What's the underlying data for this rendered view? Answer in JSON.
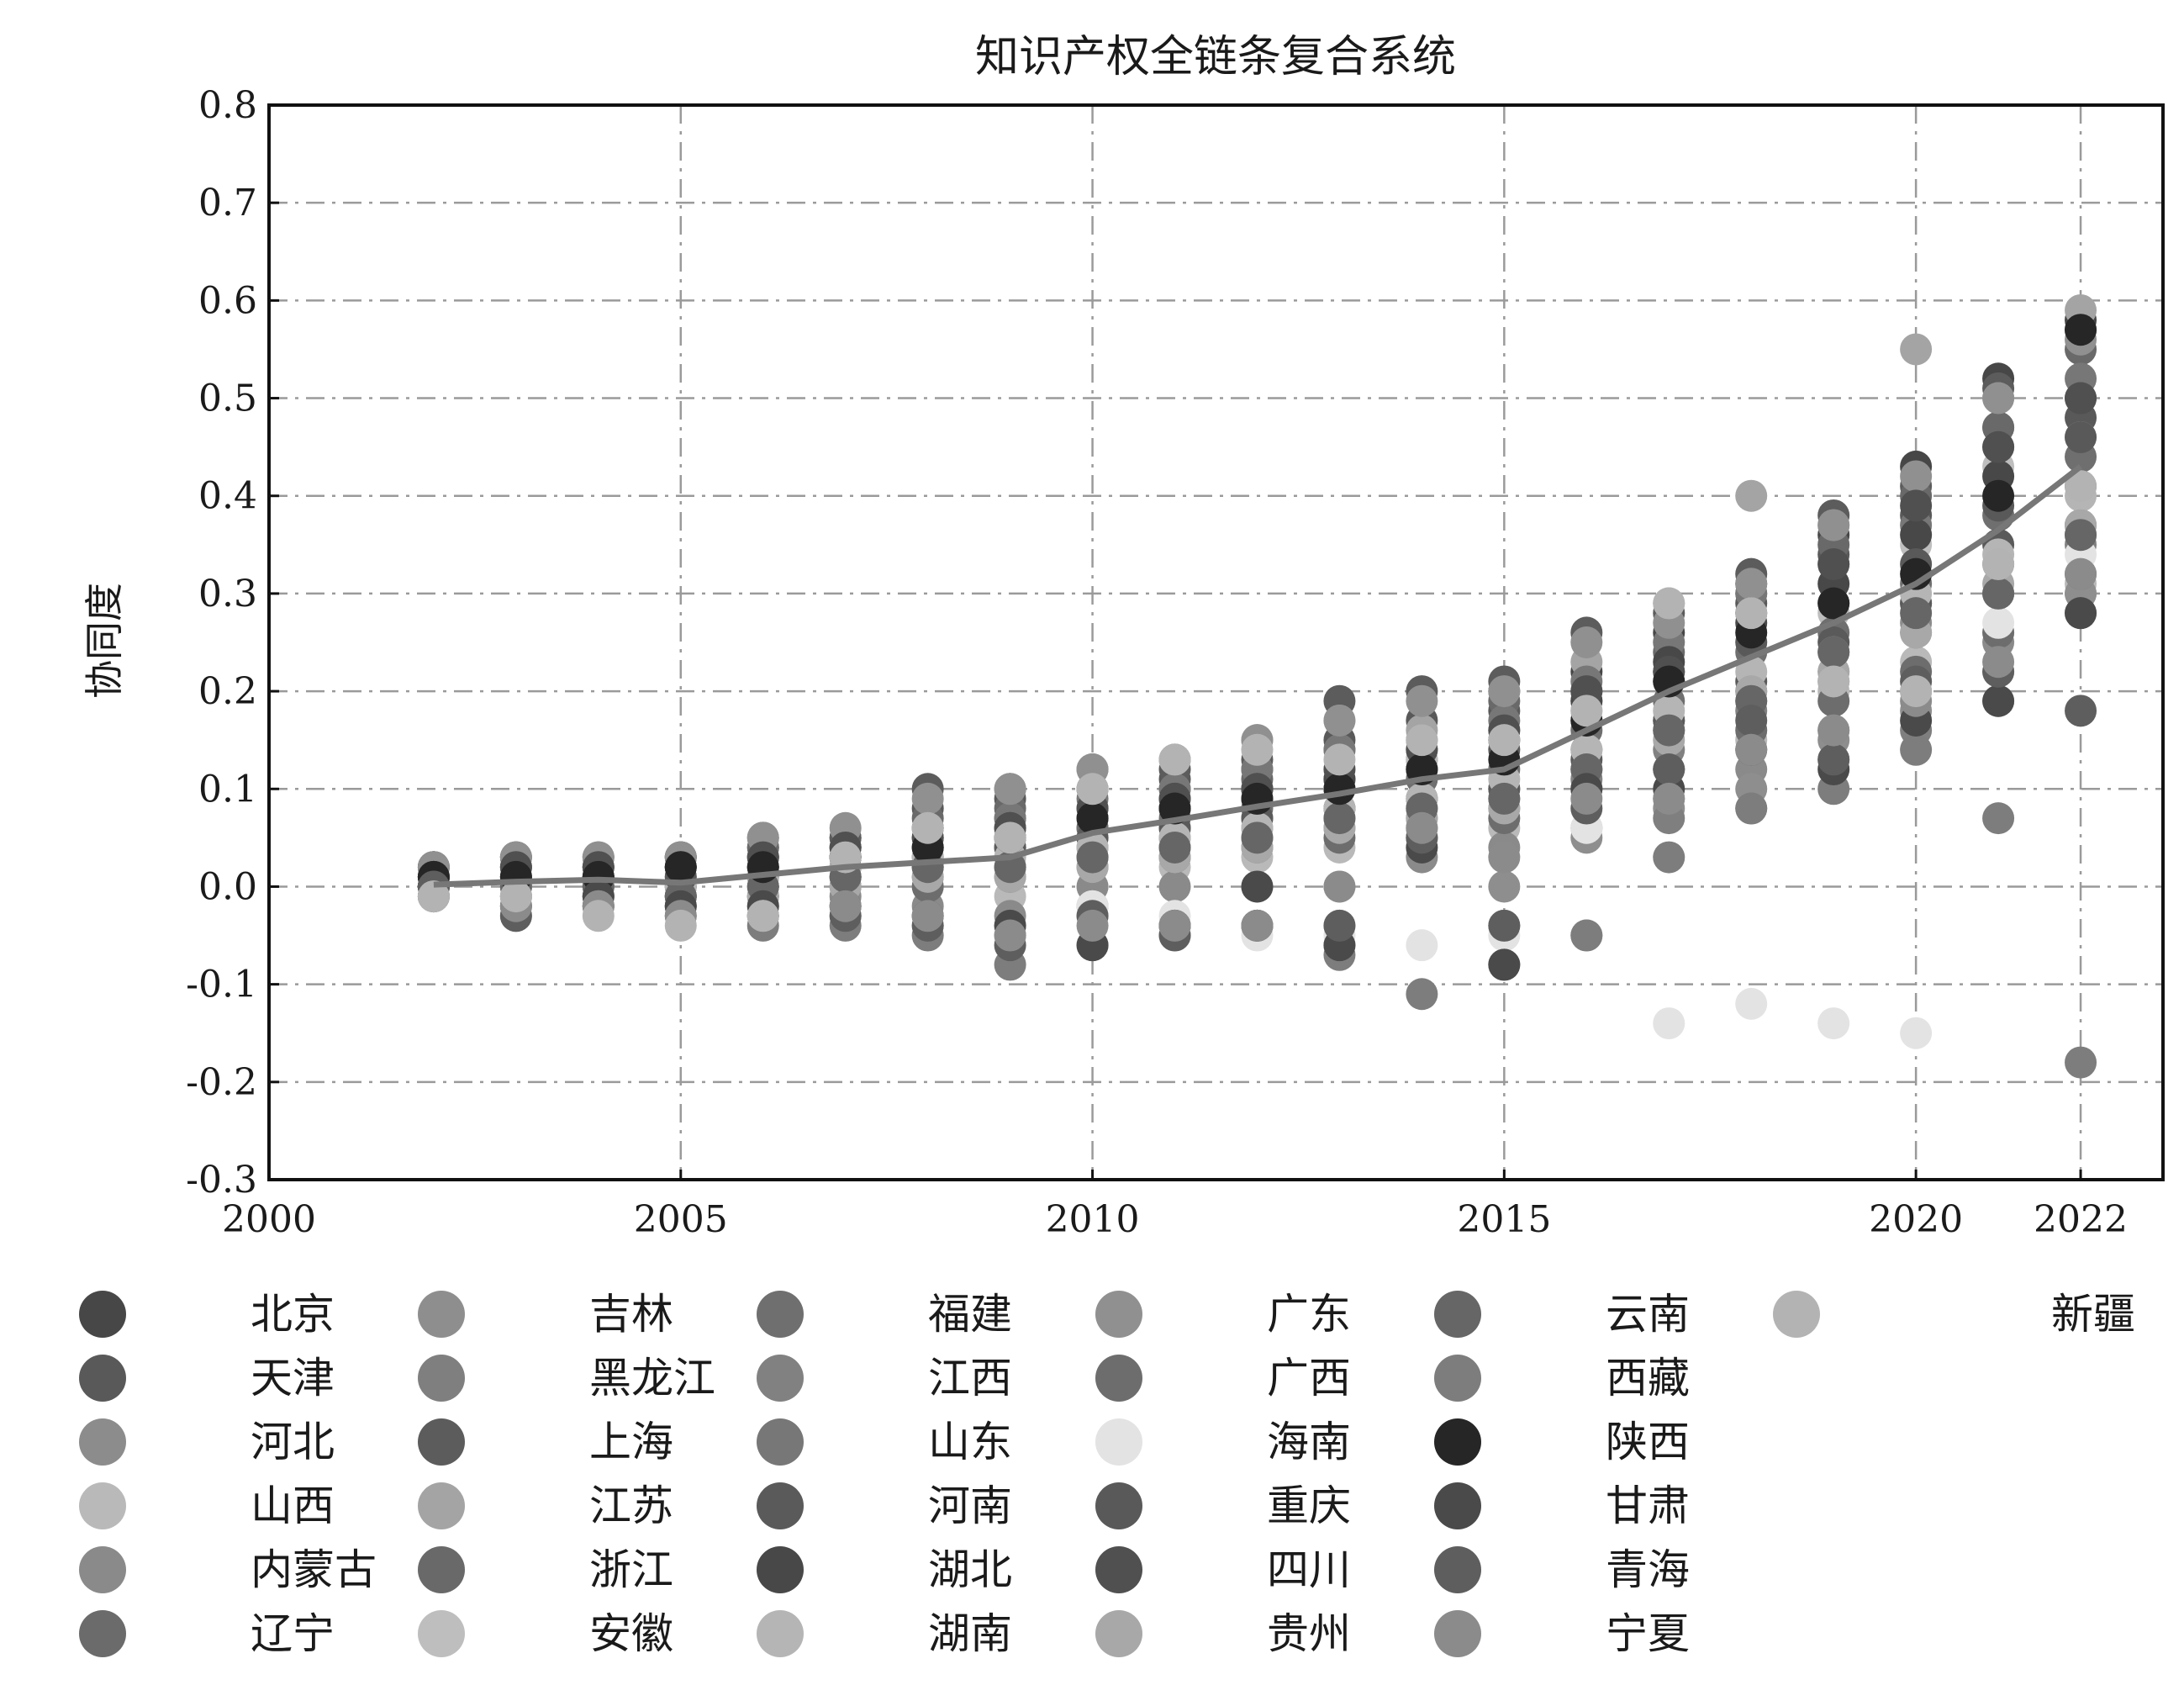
{
  "chart_data": {
    "type": "scatter",
    "title": "知识产权全链条复合系统",
    "ylabel": "协同度",
    "xlabel": "",
    "xlim": [
      2000,
      2023
    ],
    "ylim": [
      -0.3,
      0.8
    ],
    "x_ticks": [
      "2000",
      "2005",
      "2010",
      "2015",
      "2020",
      "2022"
    ],
    "x_tick_values": [
      2000,
      2005,
      2010,
      2015,
      2020,
      2022
    ],
    "y_ticks": [
      "-0.3",
      "-0.2",
      "-0.1",
      "0.0",
      "0.1",
      "0.2",
      "0.3",
      "0.4",
      "0.5",
      "0.6",
      "0.7",
      "0.8"
    ],
    "y_tick_values": [
      -0.3,
      -0.2,
      -0.1,
      0.0,
      0.1,
      0.2,
      0.3,
      0.4,
      0.5,
      0.6,
      0.7,
      0.8
    ],
    "grid": true,
    "legend_position": "bottom",
    "years": [
      2002,
      2003,
      2004,
      2005,
      2006,
      2007,
      2008,
      2009,
      2010,
      2011,
      2012,
      2013,
      2014,
      2015,
      2016,
      2017,
      2018,
      2019,
      2020,
      2021,
      2022
    ],
    "mean_line": {
      "x": [
        2002,
        2003,
        2004,
        2005,
        2006,
        2007,
        2008,
        2009,
        2010,
        2011,
        2012,
        2013,
        2014,
        2015,
        2016,
        2017,
        2018,
        2019,
        2020,
        2021,
        2022
      ],
      "y": [
        0.002,
        0.005,
        0.007,
        0.004,
        0.012,
        0.02,
        0.025,
        0.03,
        0.055,
        0.068,
        0.082,
        0.095,
        0.11,
        0.12,
        0.16,
        0.2,
        0.235,
        0.27,
        0.31,
        0.365,
        0.43
      ],
      "color": "#777777"
    },
    "series": [
      {
        "name": "北京",
        "color": "#474747",
        "values": [
          0.01,
          0.02,
          0.01,
          0.02,
          0.03,
          0.03,
          0.06,
          0.07,
          0.06,
          0.08,
          0.1,
          0.11,
          0.13,
          0.2,
          0.22,
          0.26,
          0.31,
          0.36,
          0.43,
          0.52,
          0.58
        ]
      },
      {
        "name": "天津",
        "color": "#595959",
        "values": [
          0.02,
          0.03,
          0.03,
          0.03,
          0.04,
          0.05,
          0.08,
          0.09,
          0.1,
          0.11,
          0.12,
          0.15,
          0.17,
          0.18,
          0.2,
          0.22,
          0.29,
          0.34,
          0.38,
          0.47,
          0.48
        ]
      },
      {
        "name": "河北",
        "color": "#8c8c8c",
        "values": [
          0.0,
          0.0,
          0.0,
          -0.01,
          0.0,
          0.01,
          0.02,
          0.02,
          0.04,
          0.05,
          0.06,
          0.07,
          0.08,
          0.09,
          0.12,
          0.16,
          0.19,
          0.22,
          0.27,
          0.3,
          0.36
        ]
      },
      {
        "name": "山西",
        "color": "#b9b9b9",
        "values": [
          -0.01,
          -0.01,
          -0.01,
          -0.02,
          -0.01,
          0.0,
          0.0,
          -0.01,
          0.0,
          0.02,
          0.03,
          0.04,
          0.05,
          0.06,
          0.1,
          0.12,
          0.15,
          0.2,
          0.23,
          0.26,
          0.31
        ]
      },
      {
        "name": "内蒙古",
        "color": "#8a8a8a",
        "values": [
          0.0,
          -0.01,
          -0.01,
          -0.01,
          -0.02,
          -0.01,
          -0.02,
          -0.03,
          0.0,
          0.0,
          0.0,
          0.0,
          0.03,
          0.04,
          0.06,
          0.09,
          0.12,
          0.16,
          0.2,
          0.25,
          0.3
        ]
      },
      {
        "name": "辽宁",
        "color": "#6b6b6b",
        "values": [
          0.01,
          0.0,
          0.0,
          0.0,
          0.01,
          0.01,
          0.02,
          0.04,
          0.05,
          0.06,
          0.07,
          0.08,
          0.09,
          0.1,
          0.14,
          0.17,
          0.2,
          0.24,
          0.29,
          0.33,
          0.37
        ]
      },
      {
        "name": "吉林",
        "color": "#8e8e8e",
        "values": [
          0.0,
          -0.01,
          0.0,
          -0.01,
          -0.01,
          -0.02,
          -0.03,
          -0.04,
          -0.02,
          -0.04,
          -0.04,
          -0.04,
          0.05,
          0.0,
          0.05,
          0.08,
          0.1,
          0.15,
          0.18,
          0.22,
          0.3
        ]
      },
      {
        "name": "黑龙江",
        "color": "#7f7f7f",
        "values": [
          -0.01,
          -0.02,
          -0.02,
          -0.02,
          -0.03,
          -0.03,
          -0.04,
          -0.05,
          -0.03,
          -0.05,
          -0.04,
          -0.06,
          0.05,
          -0.04,
          -0.05,
          0.07,
          0.08,
          0.13,
          0.16,
          0.19,
          0.28
        ]
      },
      {
        "name": "上海",
        "color": "#5c5c5c",
        "values": [
          0.02,
          0.03,
          0.02,
          0.03,
          0.05,
          0.05,
          0.1,
          0.1,
          0.12,
          0.12,
          0.13,
          0.19,
          0.2,
          0.21,
          0.26,
          0.28,
          0.32,
          0.38,
          0.41,
          0.51,
          0.57
        ]
      },
      {
        "name": "江苏",
        "color": "#a4a4a4",
        "values": [
          0.01,
          0.02,
          0.02,
          0.02,
          0.03,
          0.04,
          0.06,
          0.06,
          0.12,
          0.13,
          0.15,
          0.17,
          0.16,
          0.16,
          0.23,
          0.29,
          0.4,
          0.37,
          0.55,
          0.5,
          0.59
        ]
      },
      {
        "name": "浙江",
        "color": "#696969",
        "values": [
          0.02,
          0.02,
          0.02,
          0.03,
          0.04,
          0.04,
          0.07,
          0.08,
          0.1,
          0.1,
          0.11,
          0.14,
          0.14,
          0.19,
          0.19,
          0.24,
          0.3,
          0.35,
          0.4,
          0.47,
          0.55
        ]
      },
      {
        "name": "安徽",
        "color": "#bebebe",
        "values": [
          0.0,
          0.01,
          0.01,
          0.0,
          0.02,
          0.03,
          0.05,
          0.05,
          0.07,
          0.08,
          0.09,
          0.12,
          0.13,
          0.15,
          0.18,
          0.22,
          0.28,
          0.28,
          0.35,
          0.43,
          0.46
        ]
      },
      {
        "name": "福建",
        "color": "#6f6f6f",
        "values": [
          0.01,
          0.01,
          0.01,
          0.01,
          0.02,
          0.02,
          0.04,
          0.04,
          0.06,
          0.07,
          0.08,
          0.1,
          0.11,
          0.12,
          0.16,
          0.19,
          0.24,
          0.26,
          0.31,
          0.38,
          0.44
        ]
      },
      {
        "name": "江西",
        "color": "#818181",
        "values": [
          0.0,
          0.0,
          0.0,
          -0.01,
          0.0,
          0.01,
          0.01,
          0.02,
          0.03,
          0.04,
          0.05,
          0.06,
          0.07,
          0.08,
          0.11,
          0.14,
          0.18,
          0.21,
          0.26,
          0.3,
          0.35
        ]
      },
      {
        "name": "山东",
        "color": "#777777",
        "values": [
          0.01,
          0.02,
          0.02,
          0.02,
          0.03,
          0.04,
          0.06,
          0.07,
          0.09,
          0.1,
          0.12,
          0.14,
          0.15,
          0.17,
          0.21,
          0.25,
          0.3,
          0.33,
          0.37,
          0.45,
          0.52
        ]
      },
      {
        "name": "河南",
        "color": "#5a5a5a",
        "values": [
          0.0,
          0.0,
          0.01,
          0.0,
          0.01,
          0.02,
          0.03,
          0.04,
          0.05,
          0.06,
          0.07,
          0.08,
          0.09,
          0.1,
          0.13,
          0.17,
          0.21,
          0.25,
          0.29,
          0.35,
          0.41
        ]
      },
      {
        "name": "湖北",
        "color": "#484848",
        "values": [
          0.01,
          0.01,
          0.01,
          0.02,
          0.02,
          0.03,
          0.05,
          0.06,
          0.08,
          0.09,
          0.1,
          0.11,
          0.12,
          0.15,
          0.19,
          0.23,
          0.27,
          0.31,
          0.36,
          0.42,
          0.5
        ]
      },
      {
        "name": "湖南",
        "color": "#b5b5b5",
        "values": [
          0.0,
          0.0,
          0.0,
          0.0,
          0.01,
          0.02,
          0.03,
          0.03,
          0.04,
          0.05,
          0.06,
          0.08,
          0.09,
          0.11,
          0.14,
          0.18,
          0.22,
          0.24,
          0.3,
          0.34,
          0.4
        ]
      },
      {
        "name": "广东",
        "color": "#909090",
        "values": [
          0.02,
          0.03,
          0.03,
          0.03,
          0.05,
          0.06,
          0.09,
          0.1,
          0.12,
          0.13,
          0.15,
          0.17,
          0.19,
          0.2,
          0.25,
          0.27,
          0.31,
          0.37,
          0.42,
          0.5,
          0.56
        ]
      },
      {
        "name": "广西",
        "color": "#6d6d6d",
        "values": [
          0.0,
          -0.01,
          -0.01,
          -0.01,
          -0.01,
          0.0,
          0.0,
          0.01,
          0.02,
          0.03,
          0.04,
          0.05,
          0.06,
          0.07,
          0.1,
          0.12,
          0.16,
          0.19,
          0.22,
          0.26,
          0.32
        ]
      },
      {
        "name": "海南",
        "color": "#e3e3e3",
        "values": [
          -0.01,
          -0.01,
          -0.02,
          -0.02,
          -0.02,
          -0.03,
          -0.04,
          -0.06,
          -0.02,
          -0.03,
          -0.05,
          -0.05,
          -0.06,
          -0.05,
          0.06,
          -0.14,
          -0.12,
          -0.14,
          -0.15,
          0.27,
          0.34
        ]
      },
      {
        "name": "重庆",
        "color": "#595959",
        "values": [
          0.01,
          0.01,
          0.01,
          0.01,
          0.02,
          0.03,
          0.04,
          0.05,
          0.07,
          0.08,
          0.09,
          0.1,
          0.12,
          0.14,
          0.17,
          0.21,
          0.25,
          0.29,
          0.33,
          0.39,
          0.46
        ]
      },
      {
        "name": "四川",
        "color": "#505050",
        "values": [
          0.01,
          0.02,
          0.02,
          0.02,
          0.03,
          0.04,
          0.05,
          0.06,
          0.08,
          0.09,
          0.1,
          0.12,
          0.14,
          0.16,
          0.2,
          0.22,
          0.28,
          0.33,
          0.39,
          0.45,
          0.5
        ]
      },
      {
        "name": "贵州",
        "color": "#a8a8a8",
        "values": [
          -0.01,
          -0.01,
          -0.01,
          -0.02,
          -0.01,
          0.0,
          0.01,
          0.01,
          0.02,
          0.03,
          0.04,
          0.06,
          0.07,
          0.08,
          0.12,
          0.15,
          0.2,
          0.22,
          0.26,
          0.31,
          0.37
        ]
      },
      {
        "name": "云南",
        "color": "#666666",
        "values": [
          0.0,
          0.0,
          0.0,
          -0.01,
          0.0,
          0.01,
          0.02,
          0.02,
          0.03,
          0.04,
          0.05,
          0.07,
          0.08,
          0.09,
          0.12,
          0.16,
          0.19,
          0.24,
          0.28,
          0.3,
          0.36
        ]
      },
      {
        "name": "西藏",
        "color": "#7d7d7d",
        "values": [
          -0.01,
          -0.03,
          -0.02,
          -0.02,
          -0.04,
          -0.04,
          -0.05,
          -0.08,
          -0.06,
          -0.04,
          -0.04,
          -0.07,
          -0.11,
          -0.08,
          -0.05,
          0.03,
          0.08,
          0.1,
          0.14,
          0.07,
          -0.18
        ]
      },
      {
        "name": "陕西",
        "color": "#262626",
        "values": [
          0.01,
          0.01,
          0.01,
          0.02,
          0.02,
          0.03,
          0.04,
          0.05,
          0.07,
          0.08,
          0.09,
          0.1,
          0.12,
          0.13,
          0.17,
          0.21,
          0.26,
          0.29,
          0.32,
          0.4,
          0.57
        ]
      },
      {
        "name": "甘肃",
        "color": "#4a4a4a",
        "values": [
          0.0,
          -0.02,
          -0.01,
          -0.02,
          -0.02,
          -0.02,
          -0.03,
          -0.04,
          -0.06,
          -0.04,
          0.0,
          -0.06,
          0.04,
          -0.08,
          0.1,
          0.1,
          0.14,
          0.12,
          0.17,
          0.19,
          0.28
        ]
      },
      {
        "name": "青海",
        "color": "#5e5e5e",
        "values": [
          0.0,
          -0.03,
          -0.02,
          -0.03,
          -0.03,
          -0.03,
          -0.04,
          -0.06,
          -0.03,
          -0.05,
          -0.04,
          -0.04,
          0.05,
          -0.04,
          0.08,
          0.12,
          0.17,
          0.13,
          0.21,
          0.22,
          0.18
        ]
      },
      {
        "name": "宁夏",
        "color": "#8b8b8b",
        "values": [
          -0.01,
          -0.02,
          -0.02,
          -0.03,
          -0.03,
          -0.02,
          -0.03,
          -0.05,
          -0.04,
          -0.04,
          -0.04,
          0.0,
          0.06,
          0.03,
          0.09,
          0.09,
          0.14,
          0.16,
          0.19,
          0.23,
          0.32
        ]
      },
      {
        "name": "新疆",
        "color": "#b3b3b3",
        "values": [
          -0.01,
          -0.01,
          -0.03,
          -0.04,
          -0.03,
          0.03,
          0.06,
          0.05,
          0.1,
          0.13,
          0.14,
          0.13,
          0.15,
          0.15,
          0.18,
          0.29,
          0.28,
          0.21,
          0.2,
          0.33,
          0.41
        ]
      }
    ]
  }
}
